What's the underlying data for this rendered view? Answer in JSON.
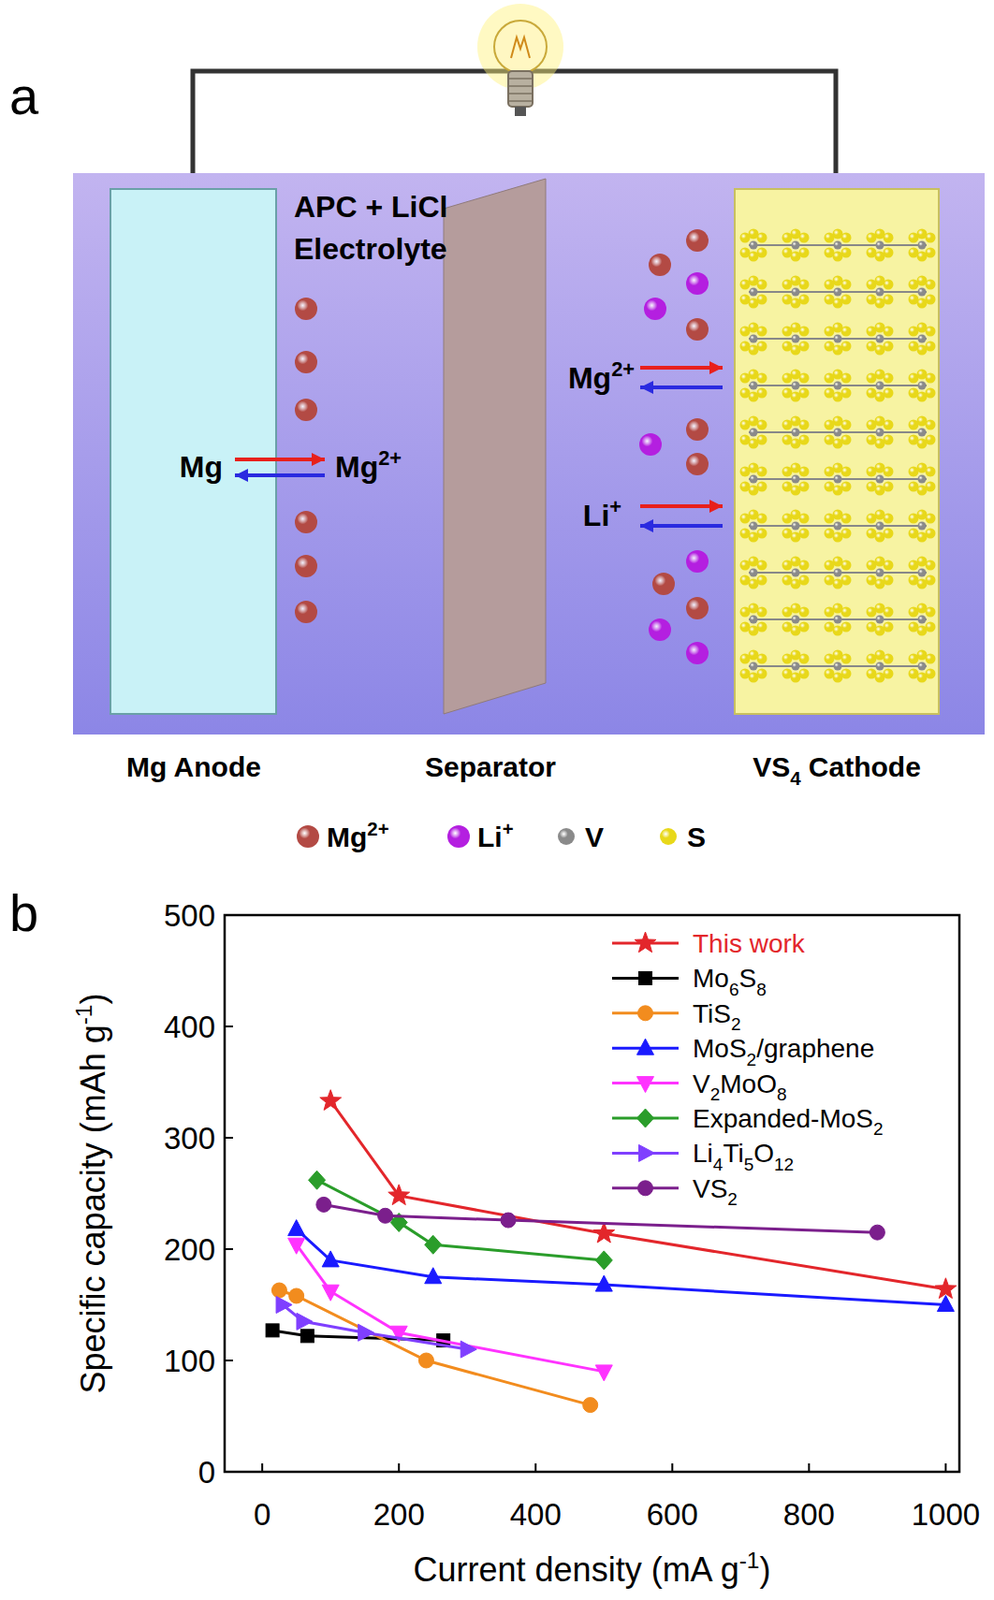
{
  "diagram": {
    "panel_label": "a",
    "electrolyte": [
      "APC + LiCl",
      "Electrolyte"
    ],
    "anode": {
      "label": "Mg Anode",
      "reactant": "Mg",
      "product": "Mg2+"
    },
    "separator": {
      "label": "Separator"
    },
    "cathode": {
      "label": "VS4 Cathode",
      "ions": [
        "Mg2+",
        "Li+"
      ]
    },
    "legend": [
      {
        "label": "Mg2+",
        "color": "#b34a44"
      },
      {
        "label": "Li+",
        "color": "#b41fe0"
      },
      {
        "label": "V",
        "color": "#8a8a8a"
      },
      {
        "label": "S",
        "color": "#e8d81a"
      }
    ]
  },
  "chart_data": {
    "type": "line",
    "panel_label": "b",
    "xlabel": "Current density (mA g-1)",
    "ylabel": "Specific capacity (mAh g-1)",
    "xlim": [
      -55,
      1020
    ],
    "ylim": [
      0,
      500
    ],
    "xticks": [
      0,
      200,
      400,
      600,
      800,
      1000
    ],
    "yticks": [
      0,
      100,
      200,
      300,
      400,
      500
    ],
    "legend": "top-right",
    "series": [
      {
        "name": "This work",
        "color": "#e3262b",
        "marker": "star",
        "x": [
          100,
          200,
          500,
          1000
        ],
        "values": [
          333,
          248,
          214,
          164
        ]
      },
      {
        "name": "Mo6S8",
        "color": "#000000",
        "marker": "square",
        "x": [
          15,
          66,
          265
        ],
        "values": [
          127,
          122,
          118
        ]
      },
      {
        "name": "TiS2",
        "color": "#f28c1e",
        "marker": "circle",
        "x": [
          25,
          50,
          240,
          480
        ],
        "values": [
          163,
          158,
          100,
          60
        ]
      },
      {
        "name": "MoS2/graphene",
        "color": "#1a1aff",
        "marker": "triangle-up",
        "x": [
          50,
          100,
          250,
          500,
          1000
        ],
        "values": [
          218,
          190,
          175,
          168,
          150
        ]
      },
      {
        "name": "V2MoO8",
        "color": "#ff33ff",
        "marker": "triangle-down",
        "x": [
          50,
          100,
          200,
          500
        ],
        "values": [
          204,
          162,
          125,
          90
        ]
      },
      {
        "name": "Expanded-MoS2",
        "color": "#2a9d2a",
        "marker": "diamond",
        "x": [
          80,
          200,
          250,
          500
        ],
        "values": [
          262,
          224,
          204,
          190
        ]
      },
      {
        "name": "Li4Ti5O12",
        "color": "#7f3fff",
        "marker": "triangle-right",
        "x": [
          30,
          60,
          150,
          300
        ],
        "values": [
          150,
          135,
          125,
          110
        ]
      },
      {
        "name": "VS2",
        "color": "#7b1f8c",
        "marker": "circle",
        "x": [
          90,
          180,
          360,
          900
        ],
        "values": [
          240,
          230,
          226,
          215
        ]
      }
    ]
  }
}
